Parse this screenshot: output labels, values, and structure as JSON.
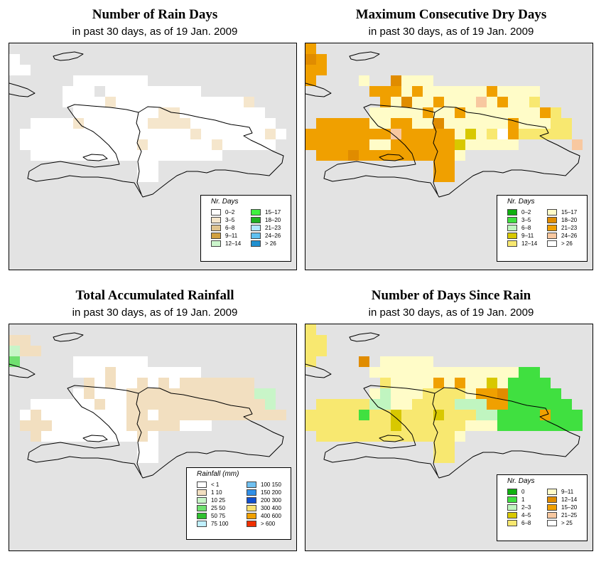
{
  "panels": [
    {
      "id": "rain-days",
      "title": "Number of Rain Days",
      "subtitle": "in past 30 days, as of  19 Jan. 2009",
      "legend_title": "Nr. Days",
      "legend_items": [
        {
          "label": "0–2",
          "color": "#ffffff"
        },
        {
          "label": "3–5",
          "color": "#f5e6cc"
        },
        {
          "label": "6–8",
          "color": "#e0c48f"
        },
        {
          "label": "9–11",
          "color": "#d0a040"
        },
        {
          "label": "12–14",
          "color": "#ccf5cc"
        },
        {
          "label": "15–17",
          "color": "#40f040"
        },
        {
          "label": "18–20",
          "color": "#20b020"
        },
        {
          "label": "21–23",
          "color": "#b0e8ff"
        },
        {
          "label": "24–26",
          "color": "#60c0f0"
        },
        {
          "label": "> 26",
          "color": "#2090d0"
        }
      ]
    },
    {
      "id": "max-dry-days",
      "title": "Maximum Consecutive Dry Days",
      "subtitle": "in past 30 days, as of  19 Jan. 2009",
      "legend_title": "Nr. Days",
      "legend_items": [
        {
          "label": "0–2",
          "color": "#10b010"
        },
        {
          "label": "3–5",
          "color": "#40e040"
        },
        {
          "label": "6–8",
          "color": "#c0f5c0"
        },
        {
          "label": "9–11",
          "color": "#d8c800"
        },
        {
          "label": "12–14",
          "color": "#f8e870"
        },
        {
          "label": "15–17",
          "color": "#fffcc8"
        },
        {
          "label": "18–20",
          "color": "#e08c00"
        },
        {
          "label": "21–23",
          "color": "#f0a000"
        },
        {
          "label": "24–26",
          "color": "#f8c8a0"
        },
        {
          "label": "> 26",
          "color": "#ffffff"
        }
      ]
    },
    {
      "id": "total-rainfall",
      "title": "Total Accumulated Rainfall",
      "subtitle": "in past 30 days, as of  19 Jan. 2009",
      "legend_title": "Rainfall (mm)",
      "legend_items": [
        {
          "label": "< 1",
          "color": "#ffffff"
        },
        {
          "label": "1    10",
          "color": "#f2dfc0"
        },
        {
          "label": "10    25",
          "color": "#c8f5c8"
        },
        {
          "label": "25    50",
          "color": "#70e070"
        },
        {
          "label": "50    75",
          "color": "#30c030"
        },
        {
          "label": "75  100",
          "color": "#c0f0ff"
        },
        {
          "label": "100  150",
          "color": "#70c0f0"
        },
        {
          "label": "150  200",
          "color": "#3090e8"
        },
        {
          "label": "200  300",
          "color": "#1050d0"
        },
        {
          "label": "300  400",
          "color": "#f8e070"
        },
        {
          "label": "400  600",
          "color": "#f0a000"
        },
        {
          "label": "> 600",
          "color": "#f03000"
        }
      ]
    },
    {
      "id": "days-since-rain",
      "title": "Number of Days Since Rain",
      "subtitle": "in past 30 days, as of  19 Jan. 2009",
      "legend_title": "Nr. Days",
      "legend_items": [
        {
          "label": "0",
          "color": "#10b010"
        },
        {
          "label": "1",
          "color": "#40e040"
        },
        {
          "label": "2–3",
          "color": "#c0f5c0"
        },
        {
          "label": "4–5",
          "color": "#d8c800"
        },
        {
          "label": "6–8",
          "color": "#f8e870"
        },
        {
          "label": "9–11",
          "color": "#fffcc8"
        },
        {
          "label": "12–14",
          "color": "#e08c00"
        },
        {
          "label": "15–20",
          "color": "#f0a000"
        },
        {
          "label": "21–25",
          "color": "#f8c8a0"
        },
        {
          "label": "> 25",
          "color": "#ffffff"
        }
      ]
    }
  ]
}
